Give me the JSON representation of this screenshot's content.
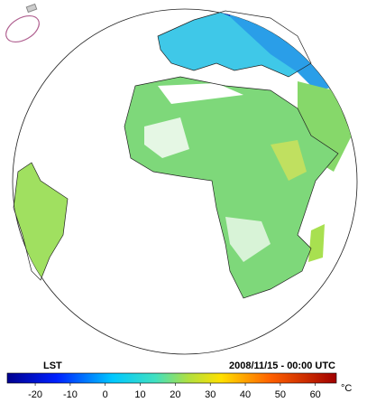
{
  "map": {
    "title": "LST",
    "timestamp": "2008/11/15 - 00:00 UTC",
    "colorbar": {
      "lim": [
        -28,
        66
      ],
      "ticks": [
        -20,
        -10,
        0,
        10,
        20,
        30,
        40,
        50,
        60
      ],
      "unit": "°C"
    }
  }
}
